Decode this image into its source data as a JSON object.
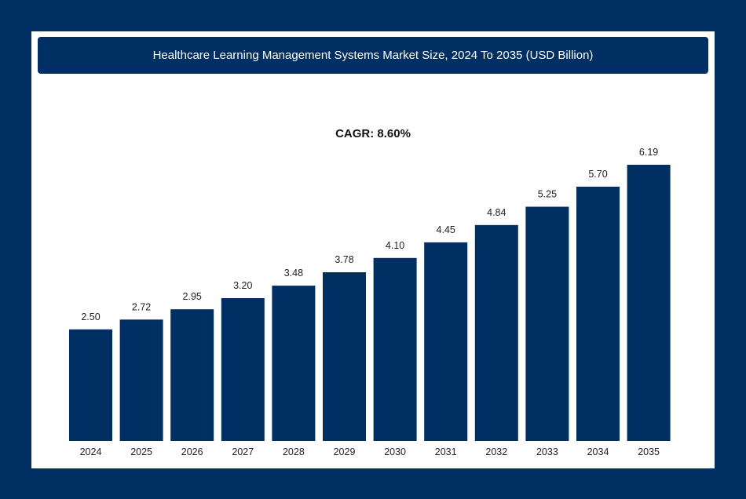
{
  "chart_data": {
    "type": "bar",
    "title": "Healthcare Learning Management Systems Market Size, 2024 To 2035 (USD Billion)",
    "subtitle": "CAGR: 8.60%",
    "categories": [
      "2024",
      "2025",
      "2026",
      "2027",
      "2028",
      "2029",
      "2030",
      "2031",
      "2032",
      "2033",
      "2034",
      "2035"
    ],
    "values": [
      2.5,
      2.72,
      2.95,
      3.2,
      3.48,
      3.78,
      4.1,
      4.45,
      4.84,
      5.25,
      5.7,
      6.19
    ],
    "value_labels": [
      "2.50",
      "2.72",
      "2.95",
      "3.20",
      "3.48",
      "3.78",
      "4.10",
      "4.45",
      "4.84",
      "5.25",
      "5.70",
      "6.19"
    ],
    "xlabel": "",
    "ylabel": "",
    "ylim": [
      0,
      6.19
    ],
    "grid": false,
    "colors": {
      "bar": "#002f63",
      "background": "#002f63",
      "card": "#ffffff"
    }
  }
}
